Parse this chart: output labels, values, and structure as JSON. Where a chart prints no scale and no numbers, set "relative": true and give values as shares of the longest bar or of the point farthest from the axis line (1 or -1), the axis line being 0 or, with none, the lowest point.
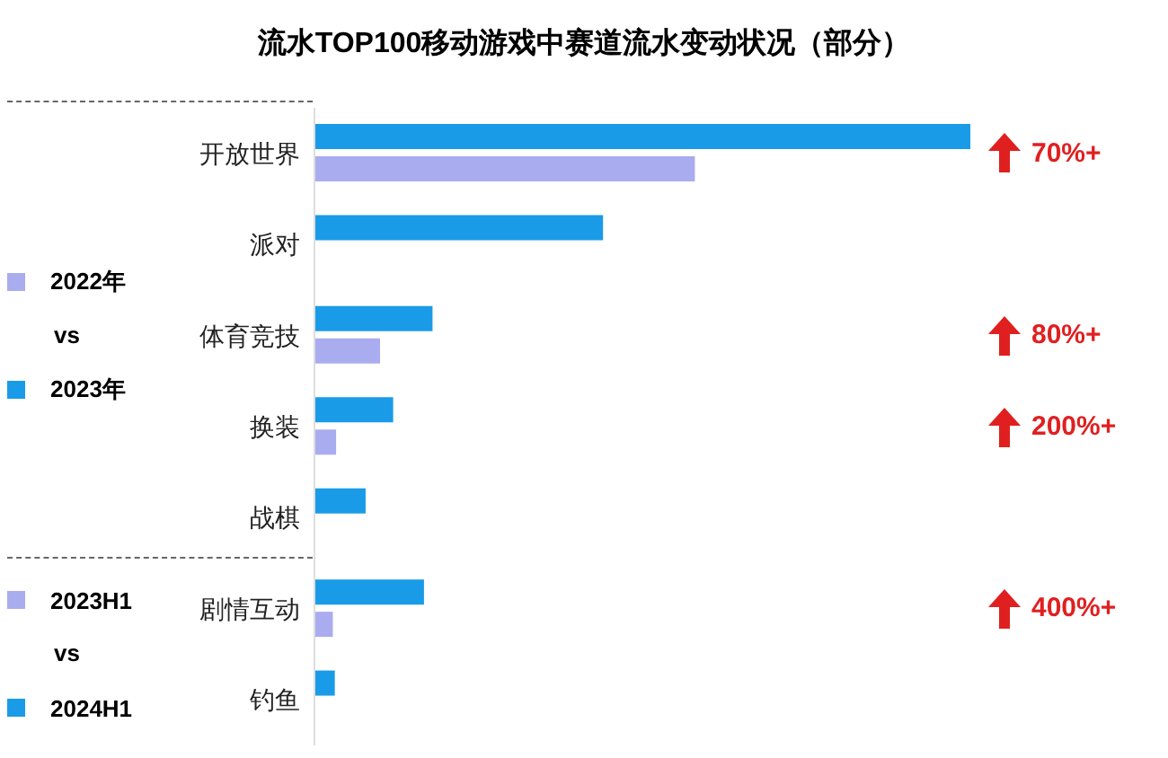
{
  "chart_data": {
    "type": "bar",
    "orientation": "horizontal",
    "relative": true,
    "title": "流水TOP100移动游戏中赛道流水变动状况（部分）",
    "categories": [
      "开放世界",
      "派对",
      "体育竞技",
      "换装",
      "战棋",
      "剧情互动",
      "钓鱼"
    ],
    "series": [
      {
        "name": "2022年",
        "color": "#aaacf0",
        "values": [
          0.58,
          null,
          0.1,
          0.033,
          null,
          null,
          null
        ]
      },
      {
        "name": "2023年",
        "color": "#1a9be8",
        "values": [
          1,
          0.44,
          0.18,
          0.12,
          0.078,
          null,
          null
        ]
      },
      {
        "name": "2023H1",
        "color": "#aaacf0",
        "values": [
          null,
          null,
          null,
          null,
          null,
          0.028,
          null
        ]
      },
      {
        "name": "2024H1",
        "color": "#1a9be8",
        "values": [
          null,
          null,
          null,
          null,
          null,
          0.167,
          0.031
        ]
      }
    ],
    "legend": "left",
    "annotations": [
      "70%+",
      "80%+",
      "200%+",
      "400%+",
      "vs",
      "vs"
    ]
  }
}
